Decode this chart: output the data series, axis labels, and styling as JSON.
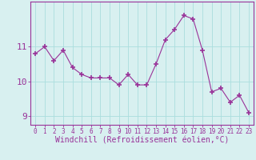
{
  "x": [
    0,
    1,
    2,
    3,
    4,
    5,
    6,
    7,
    8,
    9,
    10,
    11,
    12,
    13,
    14,
    15,
    16,
    17,
    18,
    19,
    20,
    21,
    22,
    23
  ],
  "y": [
    10.8,
    11.0,
    10.6,
    10.9,
    10.4,
    10.2,
    10.1,
    10.1,
    10.1,
    9.9,
    10.2,
    9.9,
    9.9,
    10.5,
    11.2,
    11.5,
    11.9,
    11.8,
    10.9,
    9.7,
    9.8,
    9.4,
    9.6,
    9.1
  ],
  "line_color": "#993399",
  "marker": "+",
  "marker_size": 4,
  "bg_color": "#d8f0f0",
  "grid_color": "#aadddd",
  "axis_color": "#993399",
  "xlabel": "Windchill (Refroidissement éolien,°C)",
  "ylabel": "",
  "xlim": [
    -0.5,
    23.5
  ],
  "ylim": [
    8.75,
    12.3
  ],
  "yticks": [
    9,
    10,
    11
  ],
  "xticks": [
    0,
    1,
    2,
    3,
    4,
    5,
    6,
    7,
    8,
    9,
    10,
    11,
    12,
    13,
    14,
    15,
    16,
    17,
    18,
    19,
    20,
    21,
    22,
    23
  ],
  "spine_color": "#993399",
  "tick_color": "#993399",
  "font_size_xlabel": 7,
  "font_size_yticks": 8,
  "font_size_xticks": 5.5
}
